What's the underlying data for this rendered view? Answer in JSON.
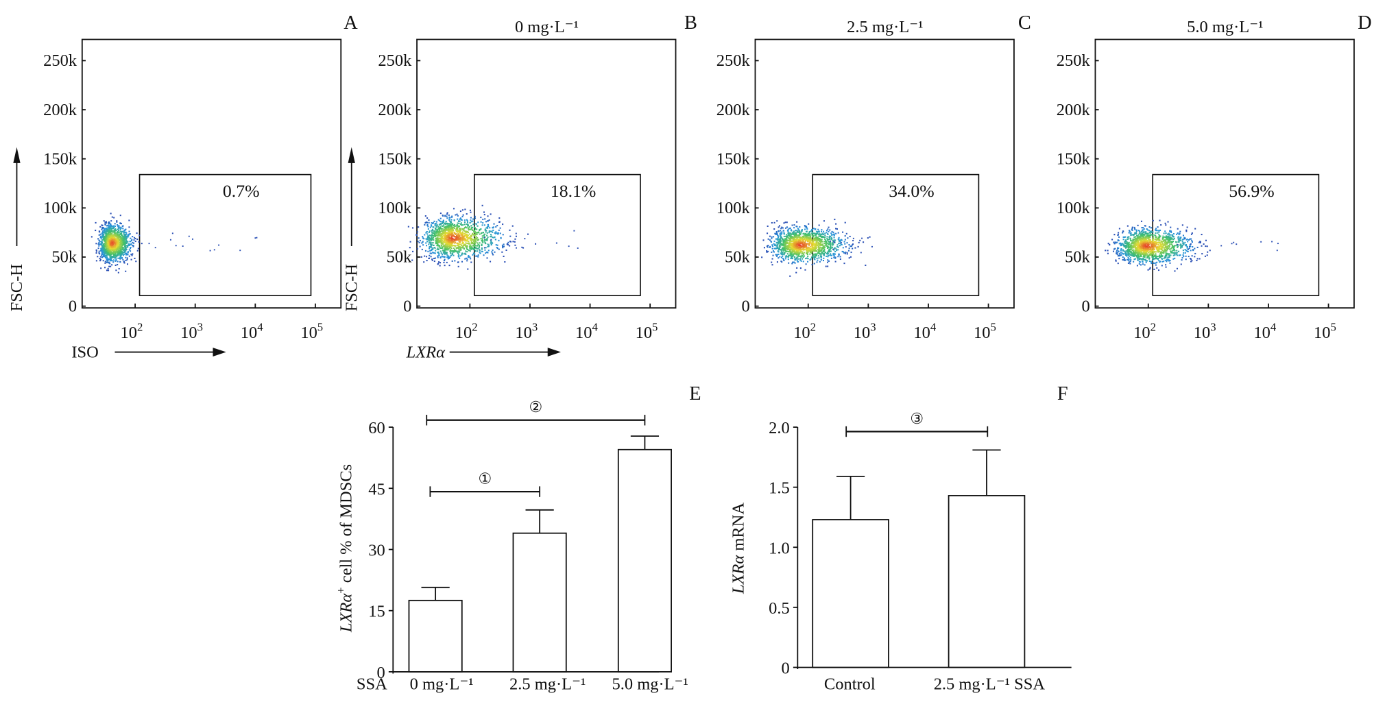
{
  "chart_data": [
    {
      "type": "scatter",
      "panel": "A",
      "title": "",
      "xlabel": "ISO",
      "ylabel": "FSC-H",
      "x_scale": "log",
      "x_ticks": [
        "10^2",
        "10^3",
        "10^4",
        "10^5"
      ],
      "y_ticks": [
        "0",
        "50k",
        "100k",
        "150k",
        "200k",
        "250k"
      ],
      "ylim": [
        0,
        270000
      ],
      "gate_percent": "0.7%",
      "population": {
        "center_log_x": 1.6,
        "center_y": 65000,
        "spread_log_x": 0.12,
        "spread_y": 9000,
        "tail_to_log_x": 4.1
      }
    },
    {
      "type": "scatter",
      "panel": "B",
      "title": "0 mg·L⁻¹",
      "xlabel": "LXRα",
      "ylabel": "FSC-H",
      "x_scale": "log",
      "x_ticks": [
        "10^2",
        "10^3",
        "10^4",
        "10^5"
      ],
      "y_ticks": [
        "0",
        "50k",
        "100k",
        "150k",
        "200k",
        "250k"
      ],
      "ylim": [
        0,
        270000
      ],
      "gate_percent": "18.1%",
      "population": {
        "center_log_x": 1.7,
        "center_y": 70000,
        "spread_log_x": 0.3,
        "spread_y": 10000,
        "tail_to_log_x": 3.8
      }
    },
    {
      "type": "scatter",
      "panel": "C",
      "title": "2.5 mg·L⁻¹",
      "xlabel": "",
      "ylabel": "",
      "x_scale": "log",
      "x_ticks": [
        "10^2",
        "10^3",
        "10^4",
        "10^5"
      ],
      "y_ticks": [
        "0",
        "50k",
        "100k",
        "150k",
        "200k",
        "250k"
      ],
      "ylim": [
        0,
        270000
      ],
      "gate_percent": "34.0%",
      "population": {
        "center_log_x": 1.85,
        "center_y": 63000,
        "spread_log_x": 0.28,
        "spread_y": 8500,
        "tail_to_log_x": 3.1
      }
    },
    {
      "type": "scatter",
      "panel": "D",
      "title": "5.0 mg·L⁻¹",
      "xlabel": "",
      "ylabel": "",
      "x_scale": "log",
      "x_ticks": [
        "10^2",
        "10^3",
        "10^4",
        "10^5"
      ],
      "y_ticks": [
        "0",
        "50k",
        "100k",
        "150k",
        "200k",
        "250k"
      ],
      "ylim": [
        0,
        270000
      ],
      "gate_percent": "56.9%",
      "population": {
        "center_log_x": 1.95,
        "center_y": 62000,
        "spread_log_x": 0.28,
        "spread_y": 8500,
        "tail_to_log_x": 4.2
      }
    },
    {
      "type": "bar",
      "panel": "E",
      "ylabel_main": "LXRα",
      "ylabel_sup": "+",
      "ylabel_rest": " cell % of MDSCs",
      "x_prefix": "SSA",
      "categories": [
        "0 mg·L⁻¹",
        "2.5 mg·L⁻¹",
        "5.0 mg·L⁻¹"
      ],
      "values": [
        17.5,
        34.0,
        54.5
      ],
      "error_upper": [
        20.7,
        39.7,
        57.8
      ],
      "ylim": [
        0,
        60
      ],
      "y_ticks": [
        "0",
        "15",
        "30",
        "45",
        "60"
      ],
      "brackets": [
        {
          "label": "①",
          "from": 0,
          "to": 1
        },
        {
          "label": "②",
          "from": 0,
          "to": 2
        }
      ]
    },
    {
      "type": "bar",
      "panel": "F",
      "ylabel_main": "LXRα",
      "ylabel_rest": " mRNA",
      "categories": [
        "Control",
        "2.5 mg·L⁻¹ SSA"
      ],
      "values": [
        1.23,
        1.43
      ],
      "error_upper": [
        1.59,
        1.81
      ],
      "ylim": [
        0,
        2.0
      ],
      "y_ticks": [
        "0",
        "0.5",
        "1.0",
        "1.5",
        "2.0"
      ],
      "brackets": [
        {
          "label": "③",
          "from": 0,
          "to": 1
        }
      ]
    }
  ],
  "colors": {
    "axis": "#111111",
    "density_low": "#2a4fb5",
    "density_mid": "#3fbf6a",
    "density_high": "#e6332a"
  }
}
